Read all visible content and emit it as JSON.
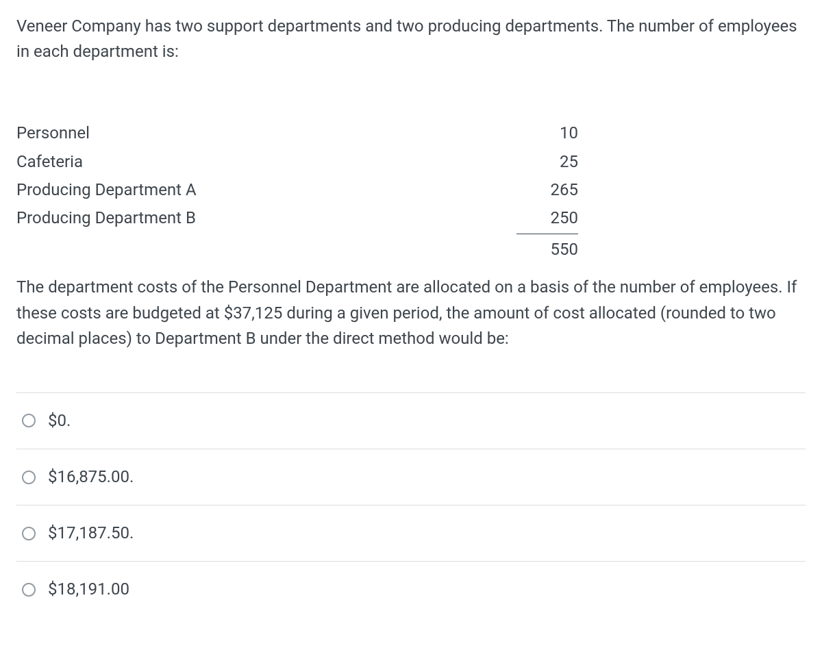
{
  "colors": {
    "text": "#3d454c",
    "border_light": "#d9dde0",
    "radio_border": "#939ba2",
    "background": "#ffffff"
  },
  "question": {
    "intro": "Veneer Company has two support departments and two producing departments. The number of employees in each department is:",
    "body": "The department costs of the Personnel Department are allocated on a basis of the number of employees. If these costs are budgeted at $37,125 during a given period, the amount of cost allocated (rounded to two decimal places) to Department B under the direct method would be:"
  },
  "table": {
    "rows": [
      {
        "label": "Personnel",
        "value": "10"
      },
      {
        "label": "Cafeteria",
        "value": "25"
      },
      {
        "label": "Producing Department A",
        "value": "265"
      },
      {
        "label": "Producing Department B",
        "value": "250"
      }
    ],
    "total": "550"
  },
  "options": [
    {
      "label": "$0."
    },
    {
      "label": "$16,875.00."
    },
    {
      "label": "$17,187.50."
    },
    {
      "label": "$18,191.00"
    }
  ]
}
